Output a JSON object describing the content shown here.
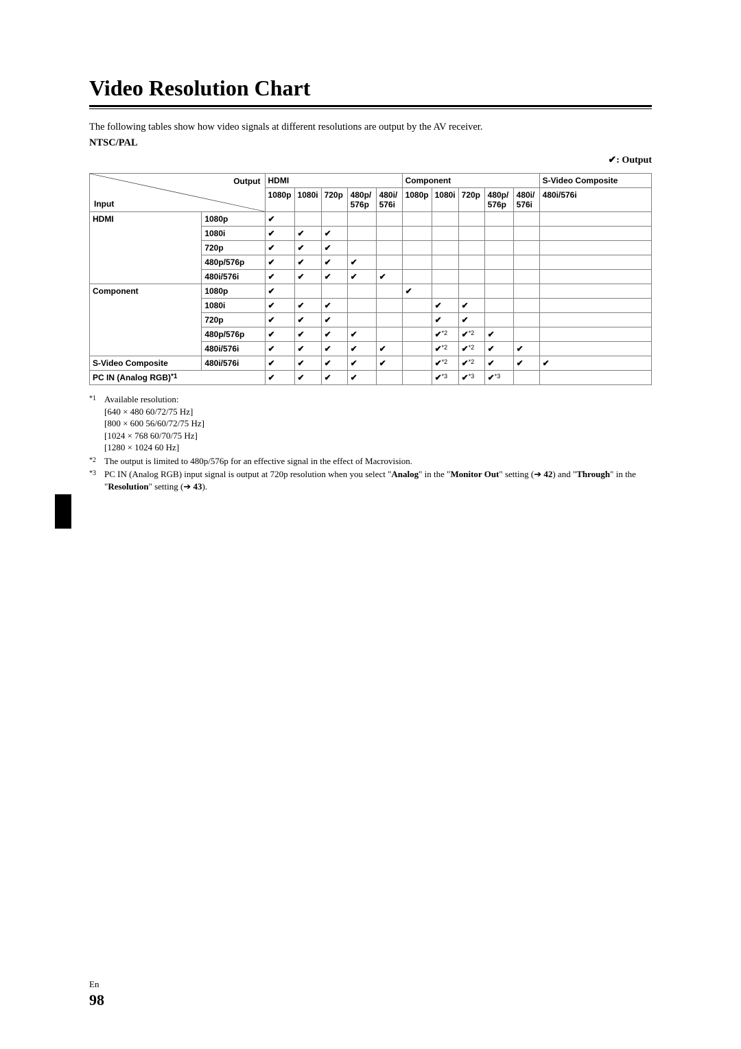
{
  "title": "Video Resolution Chart",
  "intro": "The following tables show how video signals at different resolutions are output by the AV receiver.",
  "ntsc_pal": "NTSC/PAL",
  "output_legend_symbol": "✔",
  "output_legend_text": ": Output",
  "checkmark": "✔",
  "table": {
    "diag": {
      "output": "Output",
      "input": "Input"
    },
    "output_groups": [
      "HDMI",
      "Component",
      "S-Video Composite"
    ],
    "hdmi_cols": [
      "1080p",
      "1080i",
      "720p",
      "480p/ 576p",
      "480i/ 576i"
    ],
    "component_cols": [
      "1080p",
      "1080i",
      "720p",
      "480p/ 576p",
      "480i/ 576i"
    ],
    "svideo_cols": [
      "480i/576i"
    ],
    "input_groups": [
      {
        "label": "HDMI",
        "rows": [
          "1080p",
          "1080i",
          "720p",
          "480p/576p",
          "480i/576i"
        ]
      },
      {
        "label": "Component",
        "rows": [
          "1080p",
          "1080i",
          "720p",
          "480p/576p",
          "480i/576i"
        ]
      },
      {
        "label": "S-Video Composite",
        "rows": [
          "480i/576i"
        ]
      },
      {
        "label": "PC IN (Analog RGB)",
        "sup": "*1",
        "rows": []
      }
    ],
    "cells": {
      "hdmi_1080p": [
        "c",
        "",
        "",
        "",
        "",
        "",
        "",
        "",
        "",
        "",
        ""
      ],
      "hdmi_1080i": [
        "c",
        "c",
        "c",
        "",
        "",
        "",
        "",
        "",
        "",
        "",
        ""
      ],
      "hdmi_720p": [
        "c",
        "c",
        "c",
        "",
        "",
        "",
        "",
        "",
        "",
        "",
        ""
      ],
      "hdmi_480p576p": [
        "c",
        "c",
        "c",
        "c",
        "",
        "",
        "",
        "",
        "",
        "",
        ""
      ],
      "hdmi_480i576i": [
        "c",
        "c",
        "c",
        "c",
        "c",
        "",
        "",
        "",
        "",
        "",
        ""
      ],
      "comp_1080p": [
        "c",
        "",
        "",
        "",
        "",
        "c",
        "",
        "",
        "",
        "",
        ""
      ],
      "comp_1080i": [
        "c",
        "c",
        "c",
        "",
        "",
        "",
        "c",
        "c",
        "",
        "",
        ""
      ],
      "comp_720p": [
        "c",
        "c",
        "c",
        "",
        "",
        "",
        "c",
        "c",
        "",
        "",
        ""
      ],
      "comp_480p576p": [
        "c",
        "c",
        "c",
        "c",
        "",
        "",
        "c2",
        "c2",
        "c",
        "",
        ""
      ],
      "comp_480i576i": [
        "c",
        "c",
        "c",
        "c",
        "c",
        "",
        "c2",
        "c2",
        "c",
        "c",
        ""
      ],
      "svid_480i576i": [
        "c",
        "c",
        "c",
        "c",
        "c",
        "",
        "c2",
        "c2",
        "c",
        "c",
        "c"
      ],
      "pcin": [
        "c",
        "c",
        "c",
        "c",
        "",
        "",
        "c3",
        "c3",
        "c3",
        "",
        ""
      ]
    },
    "sup2": "*2",
    "sup3": "*3"
  },
  "footnotes": {
    "f1_mark": "*1",
    "f1_lines": [
      "Available resolution:",
      "[640 × 480 60/72/75 Hz]",
      "[800 × 600 56/60/72/75 Hz]",
      "[1024 × 768 60/70/75 Hz]",
      "[1280 × 1024 60 Hz]"
    ],
    "f2_mark": "*2",
    "f2_text": "The output is limited to 480p/576p for an effective signal in the effect of Macrovision.",
    "f3_mark": "*3",
    "f3_pre": "PC IN (Analog RGB) input signal is output at 720p resolution when you select \"",
    "f3_b1": "Analog",
    "f3_mid1": "\" in the \"",
    "f3_b2": "Monitor Out",
    "f3_mid2": "\" setting (➔ ",
    "f3_b3": "42",
    "f3_mid3": ") and \"",
    "f3_b4": "Through",
    "f3_mid4": "\" in the \"",
    "f3_b5": "Resolution",
    "f3_mid5": "\" setting (➔ ",
    "f3_b6": "43",
    "f3_end": ")."
  },
  "page": {
    "lang": "En",
    "num": "98"
  }
}
